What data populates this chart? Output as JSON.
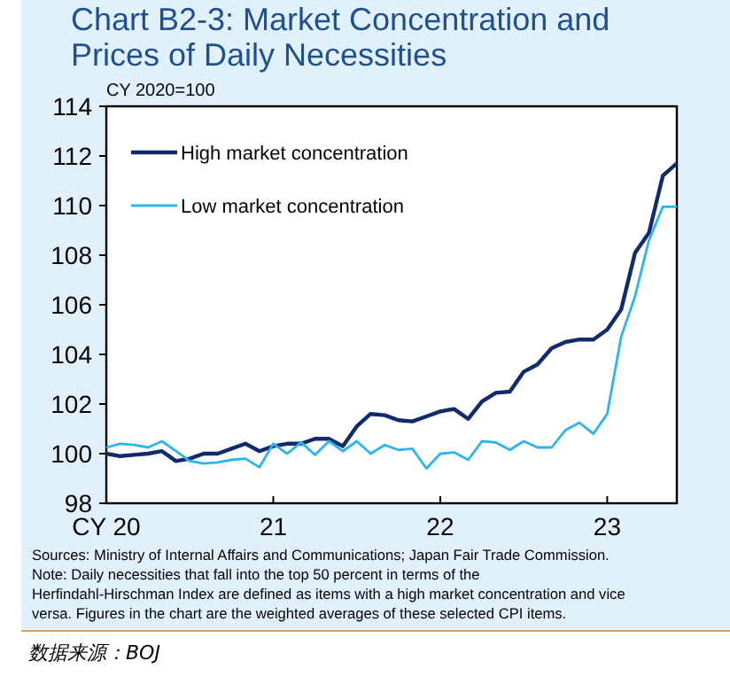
{
  "chart_data": {
    "type": "line",
    "title": "Chart B2-3: Market Concentration and Prices of Daily Necessities",
    "ylabel": "CY 2020=100",
    "x": [
      2020,
      2020.083,
      2020.167,
      2020.25,
      2020.333,
      2020.417,
      2020.5,
      2020.583,
      2020.667,
      2020.75,
      2020.833,
      2020.917,
      2021,
      2021.083,
      2021.167,
      2021.25,
      2021.333,
      2021.417,
      2021.5,
      2021.583,
      2021.667,
      2021.75,
      2021.833,
      2021.917,
      2022,
      2022.083,
      2022.167,
      2022.25,
      2022.333,
      2022.417,
      2022.5,
      2022.583,
      2022.667,
      2022.75,
      2022.833,
      2022.917,
      2023,
      2023.083,
      2023.167,
      2023.25,
      2023.333,
      2023.417
    ],
    "series": [
      {
        "name": "High market concentration",
        "color": "#102a6b",
        "values": [
          100.0,
          99.9,
          99.95,
          100.0,
          100.1,
          99.7,
          99.8,
          100.0,
          100.0,
          100.2,
          100.4,
          100.1,
          100.3,
          100.4,
          100.4,
          100.6,
          100.6,
          100.3,
          101.1,
          101.6,
          101.55,
          101.35,
          101.3,
          101.5,
          101.7,
          101.8,
          101.4,
          102.1,
          102.45,
          102.5,
          103.3,
          103.6,
          104.25,
          104.5,
          104.6,
          104.6,
          105.0,
          105.8,
          108.1,
          108.9,
          111.2,
          111.7
        ]
      },
      {
        "name": "Low market concentration",
        "color": "#2bb5ee",
        "values": [
          100.25,
          100.4,
          100.35,
          100.25,
          100.5,
          100.1,
          99.7,
          99.6,
          99.65,
          99.75,
          99.8,
          99.45,
          100.4,
          100.0,
          100.45,
          99.95,
          100.5,
          100.1,
          100.5,
          100.0,
          100.35,
          100.15,
          100.2,
          99.4,
          100.0,
          100.05,
          99.75,
          100.5,
          100.45,
          100.15,
          100.5,
          100.25,
          100.25,
          100.95,
          101.25,
          100.8,
          101.6,
          104.7,
          106.35,
          108.6,
          109.95,
          109.95
        ]
      }
    ],
    "xlim": [
      2020,
      2023.417
    ],
    "xticks": [
      {
        "value": 2020,
        "label": "CY 20"
      },
      {
        "value": 2021,
        "label": "21"
      },
      {
        "value": 2022,
        "label": "22"
      },
      {
        "value": 2023,
        "label": "23"
      }
    ],
    "ylim": [
      98,
      114
    ],
    "yticks": [
      98,
      100,
      102,
      104,
      106,
      108,
      110,
      112,
      114
    ],
    "grid": false,
    "legend": "top left",
    "marker": "none",
    "line_style": "solid",
    "annotations": [
      "Sources: Ministry of Internal Affairs and Communications; Japan Fair Trade Commission.",
      "Note: Daily necessities that fall into the top 50 percent in terms of the Herfindahl-Hirschman Index are defined as items with a high market concentration and vice versa. Figures in the chart are the weighted averages of these selected CPI items.",
      "数据来源：BOJ"
    ]
  }
}
